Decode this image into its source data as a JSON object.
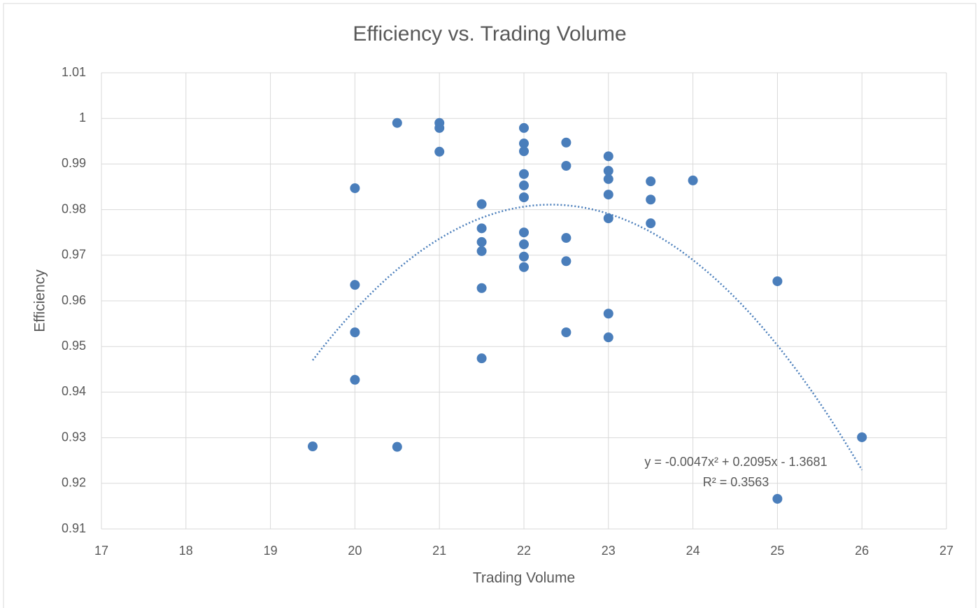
{
  "chart_data": {
    "type": "scatter",
    "title": "Efficiency vs. Trading Volume",
    "x_label": "Trading Volume",
    "y_label": "Efficiency",
    "series": [
      {
        "name": "Efficiency",
        "color": "#4a7ebb",
        "x": [
          19.5,
          20,
          20,
          20,
          20,
          20.5,
          20.5,
          21,
          21,
          21,
          21.5,
          21.5,
          21.5,
          21.5,
          21.5,
          21.5,
          22,
          22,
          22,
          22,
          22,
          22,
          22,
          22,
          22,
          22,
          22.5,
          22.5,
          22.5,
          22.5,
          22.5,
          23,
          23,
          23,
          23,
          23,
          23,
          23,
          23.5,
          23.5,
          23.5,
          24,
          25,
          25,
          26
        ],
        "values": [
          0.9281,
          0.9847,
          0.9635,
          0.9531,
          0.9427,
          0.999,
          0.928,
          0.999,
          0.9979,
          0.9927,
          0.9812,
          0.9759,
          0.9729,
          0.9709,
          0.9628,
          0.9474,
          0.9979,
          0.9945,
          0.9928,
          0.9878,
          0.9853,
          0.9827,
          0.975,
          0.9724,
          0.9697,
          0.9674,
          0.9947,
          0.9896,
          0.9738,
          0.9687,
          0.9531,
          0.9917,
          0.9885,
          0.9867,
          0.9833,
          0.9781,
          0.9572,
          0.952,
          0.9862,
          0.9822,
          0.977,
          0.9864,
          0.9643,
          0.9166,
          0.9301
        ]
      }
    ],
    "trendline": {
      "type": "polynomial",
      "order": 2,
      "equation": "y = -0.0047x² + 0.2095x - 1.3681",
      "r_squared": "R² = 0.3563"
    },
    "xlim": [
      17,
      27
    ],
    "xticks": [
      17,
      18,
      19,
      20,
      21,
      22,
      23,
      24,
      25,
      26,
      27
    ],
    "ylim": [
      0.91,
      1.01
    ],
    "yticks": [
      0.91,
      0.92,
      0.93,
      0.94,
      0.95,
      0.96,
      0.97,
      0.98,
      0.99,
      1,
      1.01
    ],
    "grid": true
  }
}
